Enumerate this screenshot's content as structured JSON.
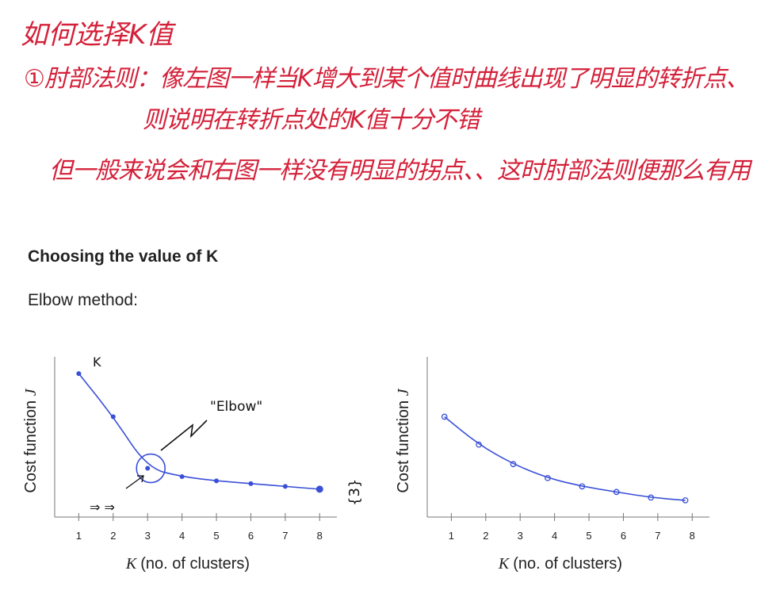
{
  "notes": {
    "title": "如何选择K值",
    "line1": "①肘部法则：像左图一样当K增大到某个值时曲线出现了明显的转折点、",
    "line2": "则说明在转折点处的K值十分不错",
    "line3": "但一般来说会和右图一样没有明显的拐点、、这时肘部法则便那么有用"
  },
  "slide": {
    "title": "Choosing the value of K",
    "subtitle": "Elbow method:"
  },
  "handwriting": {
    "elbow_label": "\"Elbow\"",
    "arrows": "⇒ ⇒",
    "k_mark": "K",
    "bracket": "{3}"
  },
  "colors": {
    "notes": "#d4213a",
    "curve": "#3a4fd8",
    "axis": "#777777"
  },
  "chart_data": [
    {
      "type": "line",
      "xlabel_prefix": "K",
      "xlabel": "(no. of clusters)",
      "ylabel_prefix": "Cost function ",
      "ylabel": "J",
      "x": [
        1,
        2,
        3,
        4,
        5,
        6,
        7,
        8
      ],
      "x_ticks": [
        "1",
        "2",
        "3",
        "4",
        "5",
        "6",
        "7",
        "8"
      ],
      "y": [
        10.3,
        7.2,
        3.5,
        2.9,
        2.6,
        2.4,
        2.2,
        2.0
      ],
      "xlim": [
        0.3,
        8.5
      ],
      "ylim": [
        0,
        11.5
      ],
      "annotation": "Elbow",
      "grid": false
    },
    {
      "type": "line",
      "xlabel_prefix": "K",
      "xlabel": "(no. of clusters)",
      "ylabel_prefix": "Cost function ",
      "ylabel": "J",
      "x": [
        0.8,
        1.8,
        2.8,
        3.8,
        4.8,
        5.8,
        6.8,
        7.8
      ],
      "x_ticks": [
        "1",
        "2",
        "3",
        "4",
        "5",
        "6",
        "7",
        "8"
      ],
      "y": [
        7.2,
        5.2,
        3.8,
        2.8,
        2.2,
        1.8,
        1.4,
        1.2
      ],
      "xlim": [
        0.3,
        8.5
      ],
      "ylim": [
        0,
        11.5
      ],
      "grid": false
    }
  ]
}
